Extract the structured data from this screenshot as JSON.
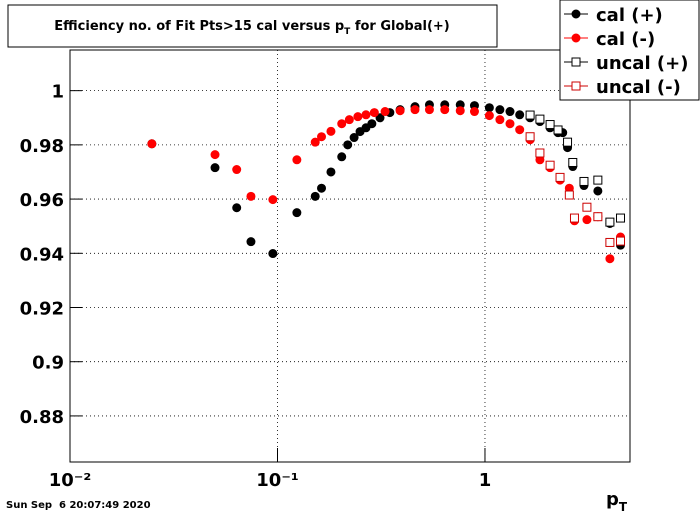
{
  "chart_data": {
    "type": "scatter",
    "title": [
      "Efficiency no. of Fit Pts>15 cal versus p",
      "T",
      " for Global(+)"
    ],
    "x_label": [
      "p",
      "T"
    ],
    "timestamp": "Sun Sep  6 20:07:49 2020",
    "log_x": true,
    "grid": true,
    "legend": "top-right",
    "xlim": [
      0.01,
      5
    ],
    "ylim": [
      0.863,
      1.015
    ],
    "xticks": [
      {
        "value": 0.01,
        "label": "10⁻²"
      },
      {
        "value": 0.1,
        "label": "10⁻¹"
      },
      1
    ],
    "yticks": [
      0.88,
      0.9,
      0.92,
      0.94,
      0.96,
      0.98,
      1
    ],
    "series": [
      {
        "name": "cal (+)",
        "color": "#000000",
        "marker": "circle",
        "filled": true,
        "x": [
          0.0248,
          0.05,
          0.0636,
          0.0745,
          0.095,
          0.124,
          0.152,
          0.163,
          0.181,
          0.204,
          0.218,
          0.234,
          0.25,
          0.267,
          0.285,
          0.312,
          0.348,
          0.39,
          0.46,
          0.54,
          0.64,
          0.76,
          0.89,
          1.05,
          1.18,
          1.32,
          1.47,
          1.65,
          1.84,
          2.06,
          2.25,
          2.37,
          2.5,
          2.65,
          3.0,
          3.5,
          4.0,
          4.5
        ],
        "values": [
          0.9804,
          0.9716,
          0.9568,
          0.9443,
          0.9399,
          0.955,
          0.961,
          0.964,
          0.97,
          0.9756,
          0.98,
          0.9827,
          0.9849,
          0.9863,
          0.9878,
          0.99,
          0.9919,
          0.993,
          0.9941,
          0.9948,
          0.9948,
          0.9948,
          0.9945,
          0.9937,
          0.993,
          0.9923,
          0.9911,
          0.99,
          0.9886,
          0.9863,
          0.9845,
          0.9845,
          0.979,
          0.972,
          0.965,
          0.963,
          0.951,
          0.943
        ]
      },
      {
        "name": "cal (-)",
        "color": "#ff0000",
        "marker": "circle",
        "filled": true,
        "x": [
          0.0248,
          0.05,
          0.0636,
          0.0745,
          0.095,
          0.124,
          0.152,
          0.163,
          0.181,
          0.204,
          0.222,
          0.244,
          0.267,
          0.293,
          0.33,
          0.39,
          0.46,
          0.54,
          0.64,
          0.76,
          0.89,
          1.05,
          1.18,
          1.32,
          1.47,
          1.65,
          1.84,
          2.06,
          2.3,
          2.55,
          2.7,
          3.1,
          3.5,
          4.0,
          4.5
        ],
        "values": [
          0.9804,
          0.9764,
          0.9709,
          0.961,
          0.9598,
          0.9745,
          0.981,
          0.983,
          0.985,
          0.9878,
          0.9893,
          0.9904,
          0.9911,
          0.9919,
          0.9923,
          0.9926,
          0.993,
          0.993,
          0.993,
          0.9926,
          0.9923,
          0.9908,
          0.9893,
          0.9878,
          0.9856,
          0.9819,
          0.9745,
          0.9716,
          0.967,
          0.964,
          0.952,
          0.9524,
          0.9535,
          0.938,
          0.946
        ]
      },
      {
        "name": "uncal (+)",
        "color": "#000000",
        "marker": "square",
        "filled": false,
        "x": [
          1.65,
          1.84,
          2.06,
          2.25,
          2.5,
          2.65,
          3.0,
          3.5,
          4.0,
          4.5
        ],
        "values": [
          0.991,
          0.9895,
          0.9875,
          0.9855,
          0.981,
          0.9735,
          0.9665,
          0.967,
          0.9515,
          0.953
        ]
      },
      {
        "name": "uncal (-)",
        "color": "#cc0000",
        "marker": "square",
        "filled": false,
        "x": [
          1.65,
          1.84,
          2.06,
          2.3,
          2.55,
          2.7,
          3.1,
          3.5,
          4.0,
          4.5
        ],
        "values": [
          0.983,
          0.977,
          0.9725,
          0.968,
          0.9615,
          0.953,
          0.957,
          0.9535,
          0.944,
          0.9445
        ]
      }
    ]
  }
}
